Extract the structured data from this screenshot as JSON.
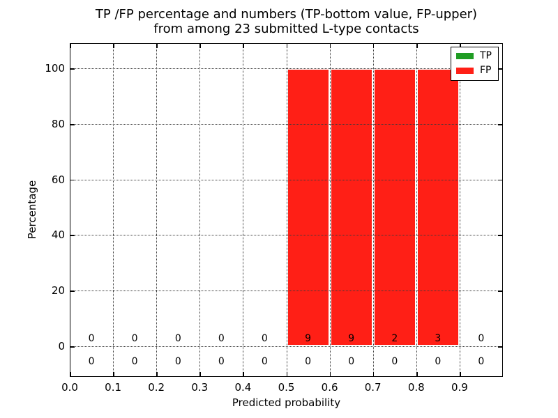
{
  "chart_data": {
    "type": "bar",
    "stacked": true,
    "title_line1": "TP /FP percentage and numbers (TP-bottom value, FP-upper)",
    "title_line2": "from among 23 submitted L-type contacts",
    "xlabel": "Predicted probability",
    "ylabel": "Percentage",
    "xlim": [
      0.0,
      1.0
    ],
    "ylim": [
      -11,
      109
    ],
    "grid": true,
    "x_tick_values": [
      0.0,
      0.1,
      0.2,
      0.3,
      0.4,
      0.5,
      0.6,
      0.7,
      0.8,
      0.9
    ],
    "x_tick_labels": [
      "0.0",
      "0.1",
      "0.2",
      "0.3",
      "0.4",
      "0.5",
      "0.6",
      "0.7",
      "0.8",
      "0.9"
    ],
    "y_tick_values": [
      0,
      20,
      40,
      60,
      80,
      100
    ],
    "y_tick_labels": [
      "0",
      "20",
      "40",
      "60",
      "80",
      "100"
    ],
    "bins": {
      "width": 0.1,
      "centers": [
        0.05,
        0.15,
        0.25,
        0.35,
        0.45,
        0.55,
        0.65,
        0.75,
        0.85,
        0.95
      ]
    },
    "series": [
      {
        "name": "TP",
        "color": "#1f9c23",
        "count_row": "lower",
        "percentages": [
          0,
          0,
          0,
          0,
          0,
          0,
          0,
          0,
          0,
          0
        ],
        "counts": [
          0,
          0,
          0,
          0,
          0,
          0,
          0,
          0,
          0,
          0
        ]
      },
      {
        "name": "FP",
        "color": "#ff1f16",
        "count_row": "upper",
        "percentages": [
          0,
          0,
          0,
          0,
          0,
          100,
          100,
          100,
          100,
          0
        ],
        "counts": [
          0,
          0,
          0,
          0,
          0,
          9,
          9,
          2,
          3,
          0
        ]
      }
    ],
    "legend": {
      "position": "upper-right",
      "entries": [
        {
          "label": "TP",
          "color": "#1f9c23"
        },
        {
          "label": "FP",
          "color": "#ff1f16"
        }
      ]
    }
  }
}
